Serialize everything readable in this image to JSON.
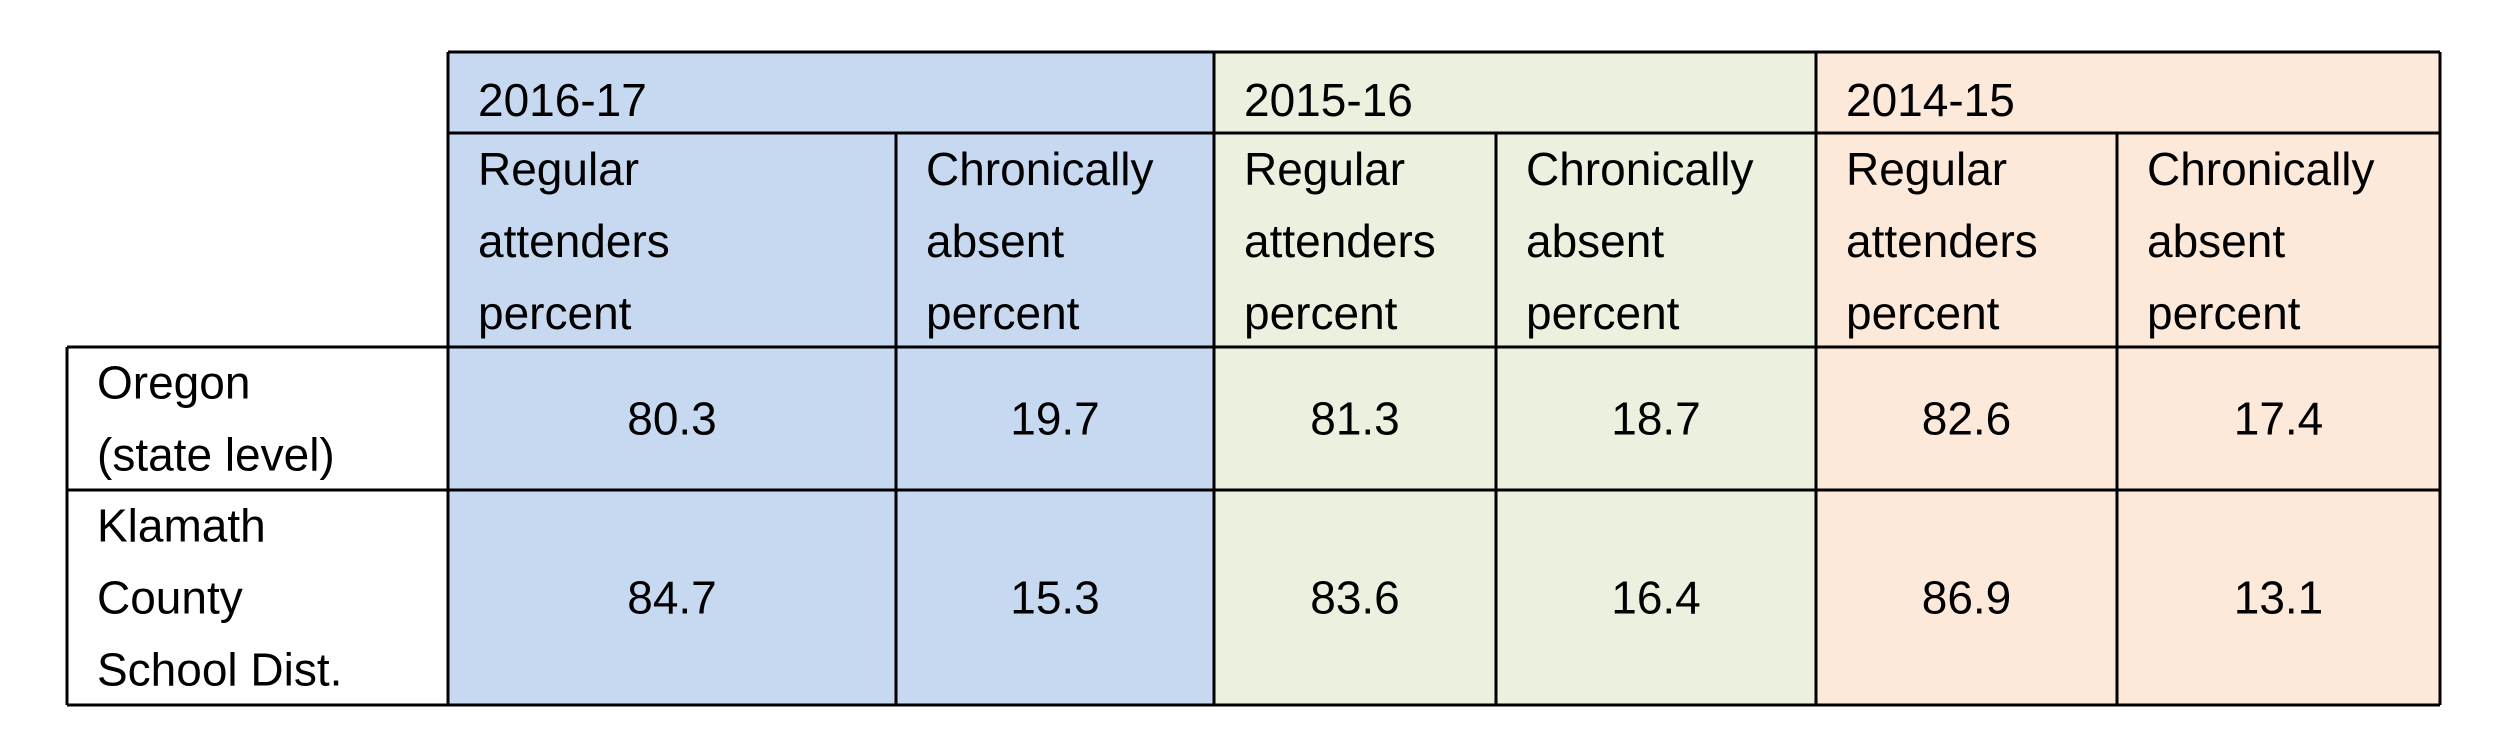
{
  "chart_data": {
    "type": "table",
    "periods": [
      {
        "label": "2016-17",
        "color": "#c6d9f1"
      },
      {
        "label": "2015-16",
        "color": "#ebf1de"
      },
      {
        "label": "2014-15",
        "color": "#fde9d9"
      }
    ],
    "columns": [
      {
        "period": 0,
        "label_lines": [
          "Regular",
          "attenders",
          "percent"
        ]
      },
      {
        "period": 0,
        "label_lines": [
          "Chronically",
          "absent",
          "percent"
        ]
      },
      {
        "period": 1,
        "label_lines": [
          "Regular",
          "attenders",
          "percent"
        ]
      },
      {
        "period": 1,
        "label_lines": [
          "Chronically",
          "absent",
          "percent"
        ]
      },
      {
        "period": 2,
        "label_lines": [
          "Regular",
          "attenders",
          "percent"
        ]
      },
      {
        "period": 2,
        "label_lines": [
          "Chronically",
          "absent",
          "percent"
        ]
      }
    ],
    "rows": [
      {
        "label_lines": [
          "Oregon",
          "(state level)"
        ],
        "values": [
          "80.3",
          "19.7",
          "81.3",
          "18.7",
          "82.6",
          "17.4"
        ]
      },
      {
        "label_lines": [
          "Klamath",
          "County",
          "School Dist."
        ],
        "values": [
          "84.7",
          "15.3",
          "83.6",
          "16.4",
          "86.9",
          "13.1"
        ]
      }
    ]
  }
}
